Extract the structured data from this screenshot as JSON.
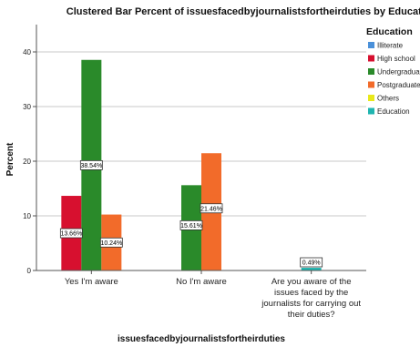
{
  "chart_data": {
    "type": "bar",
    "title": "Clustered Bar Percent of issuesfacedbyjournalistsfortheirduties by Education",
    "xlabel": "issuesfacedbyjournalistsfortheirduties",
    "ylabel": "Percent",
    "ylim": [
      0,
      45
    ],
    "yticks": [
      0,
      10,
      20,
      30,
      40
    ],
    "grid": true,
    "legend_title": "Education",
    "legend_position": "right",
    "categories": [
      "Yes I'm aware",
      "No I'm aware",
      "Are you aware of the issues faced by the journalists for carrying out their duties?"
    ],
    "category_lines": [
      [
        "Yes I'm aware"
      ],
      [
        "No I'm aware"
      ],
      [
        "Are you aware of the",
        "issues faced by the",
        "journalists for carrying out",
        "their duties?"
      ]
    ],
    "series": [
      {
        "name": "Illiterate",
        "color": "#4a90d9",
        "values": [
          null,
          null,
          null
        ],
        "labels": [
          null,
          null,
          null
        ]
      },
      {
        "name": "High school",
        "color": "#d7102f",
        "values": [
          13.66,
          null,
          null
        ],
        "labels": [
          "13.66%",
          null,
          null
        ]
      },
      {
        "name": "Undergraduate",
        "color": "#2a8a2a",
        "values": [
          38.54,
          15.61,
          null
        ],
        "labels": [
          "38.54%",
          "15.61%",
          null
        ]
      },
      {
        "name": "Postgraduate",
        "color": "#f26b2a",
        "values": [
          10.24,
          21.46,
          null
        ],
        "labels": [
          "10.24%",
          "21.46%",
          null
        ]
      },
      {
        "name": "Others",
        "color": "#e8e81a",
        "values": [
          null,
          null,
          null
        ],
        "labels": [
          null,
          null,
          null
        ]
      },
      {
        "name": "Education",
        "color": "#1fb5b0",
        "values": [
          null,
          null,
          0.49
        ],
        "labels": [
          null,
          null,
          "0.49%"
        ]
      }
    ]
  }
}
